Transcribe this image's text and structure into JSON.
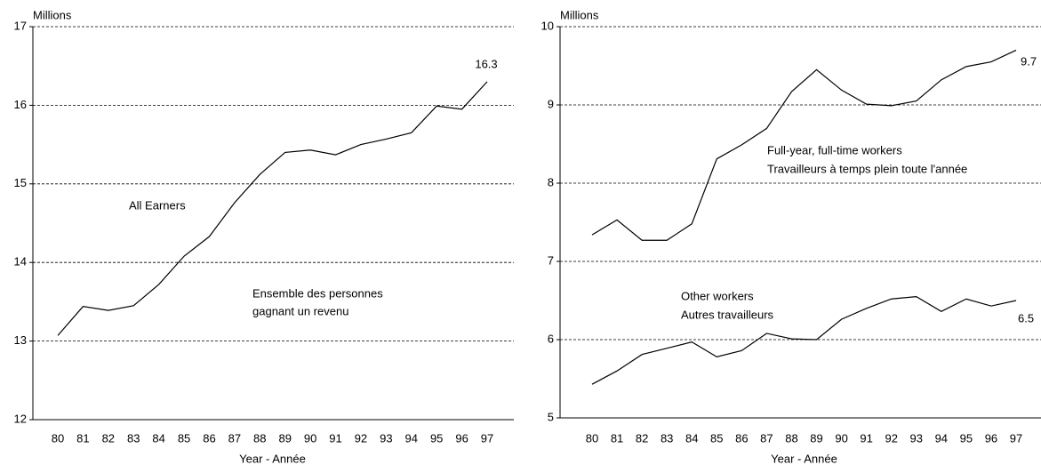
{
  "chart_data": [
    {
      "type": "line",
      "y_label": "Millions",
      "x_label": "Year - Année",
      "categories": [
        "80",
        "81",
        "82",
        "83",
        "84",
        "85",
        "86",
        "87",
        "88",
        "89",
        "90",
        "91",
        "92",
        "93",
        "94",
        "95",
        "96",
        "97"
      ],
      "series": [
        {
          "color": "#000000",
          "values": [
            13.07,
            13.44,
            13.39,
            13.45,
            13.72,
            14.08,
            14.33,
            14.76,
            15.12,
            15.4,
            15.43,
            15.37,
            15.5,
            15.57,
            15.65,
            15.99,
            15.95,
            16.3
          ]
        }
      ],
      "ylim": [
        12,
        17
      ],
      "yticks": [
        12,
        13,
        14,
        15,
        16,
        17
      ],
      "grid": true,
      "annotations": [
        "16.3",
        "All Earners",
        "Ensemble des personnes",
        "gagnant un revenu"
      ]
    },
    {
      "type": "line",
      "y_label": "Millions",
      "x_label": "Year - Année",
      "categories": [
        "80",
        "81",
        "82",
        "83",
        "84",
        "85",
        "86",
        "87",
        "88",
        "89",
        "90",
        "91",
        "92",
        "93",
        "94",
        "95",
        "96",
        "97"
      ],
      "series": [
        {
          "color": "#000000",
          "values": [
            7.34,
            7.53,
            7.27,
            7.27,
            7.48,
            8.31,
            8.49,
            8.7,
            9.17,
            9.45,
            9.19,
            9.01,
            8.99,
            9.05,
            9.32,
            9.49,
            9.55,
            9.7
          ]
        },
        {
          "color": "#000000",
          "values": [
            5.43,
            5.6,
            5.81,
            5.89,
            5.97,
            5.78,
            5.86,
            6.08,
            6.01,
            6.0,
            6.26,
            6.4,
            6.52,
            6.55,
            6.36,
            6.52,
            6.43,
            6.5
          ]
        }
      ],
      "ylim": [
        5,
        10
      ],
      "yticks": [
        5,
        6,
        7,
        8,
        9,
        10
      ],
      "grid": true,
      "annotations": [
        "9.7",
        "Full-year, full-time workers",
        "Travailleurs à temps plein toute l'année",
        "Other workers",
        "Autres travailleurs",
        "6.5"
      ]
    }
  ]
}
